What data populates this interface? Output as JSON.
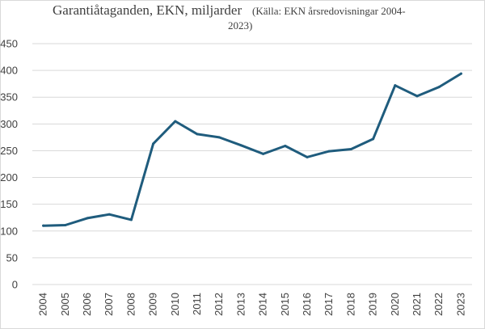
{
  "chart_data": {
    "type": "line",
    "title": "Garantiåtaganden, EKN, miljarder",
    "subtitle_line1": "(Källa: EKN årsredovisningar 2004-",
    "subtitle_line2": "2023)",
    "xlabel": "",
    "ylabel": "",
    "ylim": [
      0,
      450
    ],
    "yticks": [
      0,
      50,
      100,
      150,
      200,
      250,
      300,
      350,
      400,
      450
    ],
    "grid": true,
    "legend": "none",
    "colors": {
      "series": "#1f5c7d",
      "grid": "#d9d9d9",
      "text": "#404040"
    },
    "categories": [
      "2004",
      "2005",
      "2006",
      "2007",
      "2008",
      "2009",
      "2010",
      "2011",
      "2012",
      "2013",
      "2014",
      "2015",
      "2016",
      "2017",
      "2018",
      "2019",
      "2020",
      "2021",
      "2022",
      "2023"
    ],
    "series": [
      {
        "values": [
          110,
          111,
          124,
          131,
          121,
          263,
          305,
          281,
          275,
          260,
          244,
          259,
          238,
          249,
          253,
          272,
          372,
          352,
          369,
          394
        ]
      }
    ]
  }
}
